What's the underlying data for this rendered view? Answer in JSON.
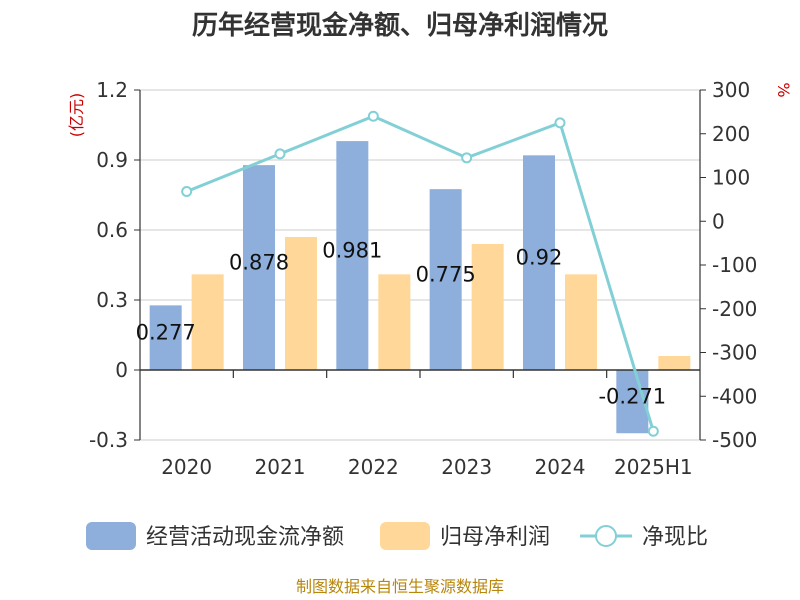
{
  "chart_data": {
    "type": "bar",
    "title": "历年经营现金净额、归母净利润情况",
    "categories": [
      "2020",
      "2021",
      "2022",
      "2023",
      "2024",
      "2025H1"
    ],
    "y_left_unit": "(亿元)",
    "y_right_unit": "%",
    "y_left_ticks": [
      "1.2",
      "0.9",
      "0.6",
      "0.3",
      "0",
      "-0.3"
    ],
    "y_right_ticks": [
      "300",
      "200",
      "100",
      "0",
      "-100",
      "-200",
      "-300",
      "-400",
      "-500"
    ],
    "ylim_left": [
      -0.3,
      1.2
    ],
    "ylim_right": [
      -500,
      300
    ],
    "grid": true,
    "legend_position": "bottom",
    "series": [
      {
        "name": "经营活动现金流净额",
        "kind": "bar",
        "axis": "left",
        "color": "#8eaedb",
        "values": [
          0.277,
          0.878,
          0.981,
          0.775,
          0.92,
          -0.271
        ],
        "labels": [
          "0.277",
          "0.878",
          "0.981",
          "0.775",
          "0.92",
          "-0.271"
        ]
      },
      {
        "name": "归母净利润",
        "kind": "bar",
        "axis": "left",
        "color": "#ffd899",
        "values": [
          0.41,
          0.57,
          0.41,
          0.54,
          0.41,
          0.06
        ]
      },
      {
        "name": "净现比",
        "kind": "line",
        "axis": "right",
        "color": "#82d0d6",
        "values": [
          68,
          154,
          240,
          145,
          225,
          -480
        ]
      }
    ]
  },
  "source_note": "制图数据来自恒生聚源数据库"
}
